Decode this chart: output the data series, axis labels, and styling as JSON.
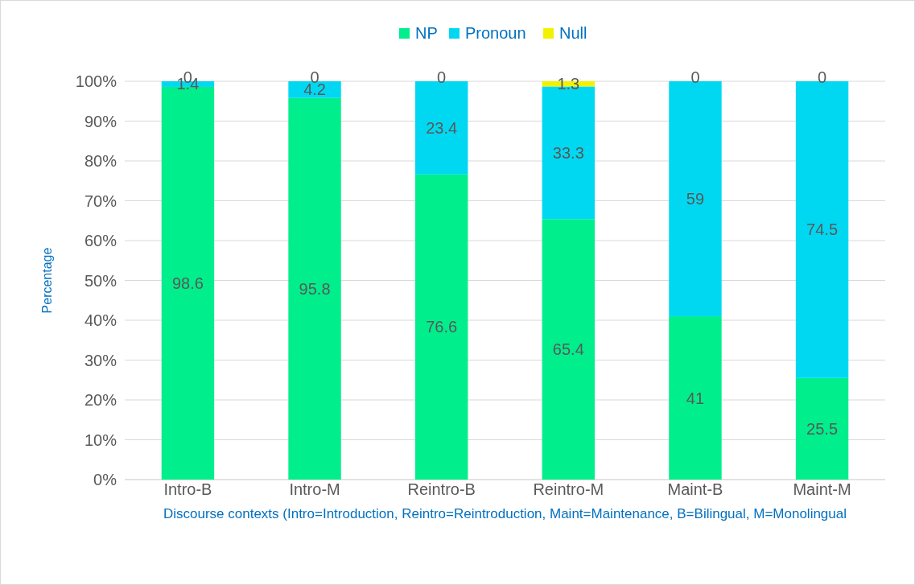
{
  "chart_data": {
    "type": "bar",
    "stacked": true,
    "xlabel": "Discourse contexts (Intro=Introduction, Reintro=Reintroduction, Maint=Maintenance, B=Bilingual, M=Monolingual",
    "ylabel": "Percentage",
    "categories": [
      "Intro-B",
      "Intro-M",
      "Reintro-B",
      "Reintro-M",
      "Maint-B",
      "Maint-M"
    ],
    "series": [
      {
        "name": "NP",
        "color": "#00ee8c",
        "values": [
          98.6,
          95.8,
          76.6,
          65.4,
          41,
          25.5
        ]
      },
      {
        "name": "Pronoun",
        "color": "#00d8f2",
        "values": [
          1.4,
          4.2,
          23.4,
          33.3,
          59,
          74.5
        ]
      },
      {
        "name": "Null",
        "color": "#f2f200",
        "values": [
          0,
          0,
          0,
          1.3,
          0,
          0
        ]
      }
    ],
    "ylim": [
      0,
      100
    ],
    "yticks": [
      {
        "value": 0,
        "label": "0%"
      },
      {
        "value": 10,
        "label": "10%"
      },
      {
        "value": 20,
        "label": "20%"
      },
      {
        "value": 30,
        "label": "30%"
      },
      {
        "value": 40,
        "label": "40%"
      },
      {
        "value": 50,
        "label": "50%"
      },
      {
        "value": 60,
        "label": "60%"
      },
      {
        "value": 70,
        "label": "70%"
      },
      {
        "value": 80,
        "label": "80%"
      },
      {
        "value": 90,
        "label": "90%"
      },
      {
        "value": 100,
        "label": "100%"
      }
    ],
    "grid": "y",
    "legend": "top",
    "data_labels": true
  }
}
